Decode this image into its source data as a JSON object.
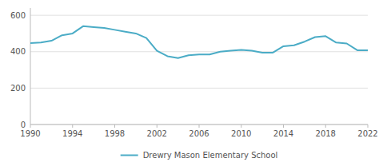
{
  "chart_data": {
    "type": "line",
    "x": [
      1990,
      1991,
      1992,
      1993,
      1994,
      1995,
      1996,
      1997,
      1998,
      1999,
      2000,
      2001,
      2002,
      2003,
      2004,
      2005,
      2006,
      2007,
      2008,
      2009,
      2010,
      2011,
      2012,
      2013,
      2014,
      2015,
      2016,
      2017,
      2018,
      2019,
      2020,
      2021,
      2022
    ],
    "series": [
      {
        "name": "Drewry Mason Elementary School",
        "color": "#4bacc6",
        "values": [
          447,
          450,
          460,
          490,
          500,
          540,
          535,
          530,
          520,
          510,
          500,
          475,
          405,
          375,
          365,
          380,
          385,
          385,
          400,
          405,
          410,
          405,
          395,
          395,
          430,
          435,
          455,
          480,
          485,
          450,
          445,
          408,
          408
        ]
      }
    ],
    "xlim": [
      1990,
      2022
    ],
    "ylim": [
      0,
      640
    ],
    "xticks": [
      1990,
      1994,
      1998,
      2002,
      2006,
      2010,
      2014,
      2018,
      2022
    ],
    "yticks": [
      0,
      200,
      400,
      600
    ],
    "grid": true,
    "legend": "bottom"
  }
}
